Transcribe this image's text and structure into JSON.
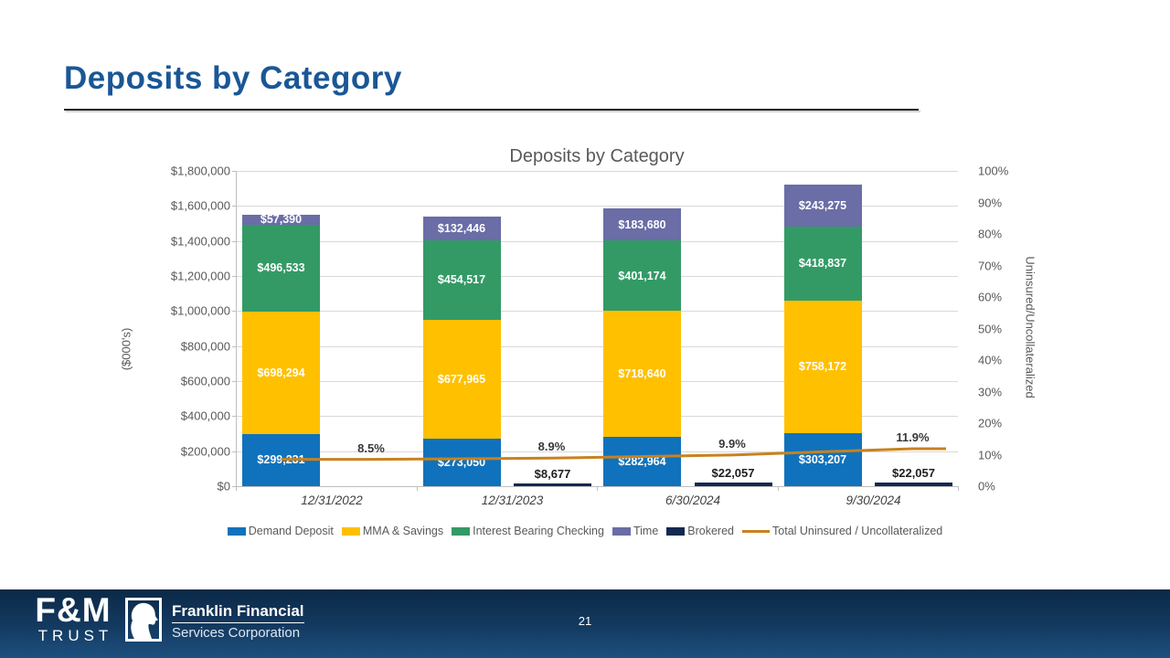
{
  "slide": {
    "title": "Deposits by Category",
    "page_number": "21"
  },
  "chart_data": {
    "type": "bar",
    "title": "Deposits by Category",
    "categories": [
      "12/31/2022",
      "12/31/2023",
      "6/30/2024",
      "9/30/2024"
    ],
    "left_axis": {
      "title": "($000's)",
      "min": 0,
      "max": 1800000,
      "step": 200000,
      "ticks": [
        "$1,800,000",
        "$1,600,000",
        "$1,400,000",
        "$1,200,000",
        "$1,000,000",
        "$800,000",
        "$600,000",
        "$400,000",
        "$200,000",
        "$0"
      ]
    },
    "right_axis": {
      "title": "Uninsured/Uncollateralized",
      "min": 0,
      "max": 100,
      "step": 10,
      "ticks": [
        "100%",
        "90%",
        "80%",
        "70%",
        "60%",
        "50%",
        "40%",
        "30%",
        "20%",
        "10%",
        "0%"
      ]
    },
    "stacked_series": [
      {
        "name": "Demand Deposit",
        "color": "#1072BC",
        "values": [
          299231,
          273050,
          282964,
          303207
        ],
        "labels": [
          "$299,231",
          "$273,050",
          "$282,964",
          "$303,207"
        ]
      },
      {
        "name": "MMA & Savings",
        "color": "#FFC000",
        "values": [
          698294,
          677965,
          718640,
          758172
        ],
        "labels": [
          "$698,294",
          "$677,965",
          "$718,640",
          "$758,172"
        ]
      },
      {
        "name": "Interest Bearing Checking",
        "color": "#339A66",
        "values": [
          496533,
          454517,
          401174,
          418837
        ],
        "labels": [
          "$496,533",
          "$454,517",
          "$401,174",
          "$418,837"
        ]
      },
      {
        "name": "Time",
        "color": "#6A6DA6",
        "values": [
          57390,
          132446,
          183680,
          243275
        ],
        "labels": [
          "$57,390",
          "$132,446",
          "$183,680",
          "$243,275"
        ]
      }
    ],
    "brokered_series": {
      "name": "Brokered",
      "color": "#13294F",
      "values": [
        0,
        8677,
        22057,
        22057
      ],
      "labels": [
        "",
        "$8,677",
        "$22,057",
        "$22,057"
      ]
    },
    "line_series": {
      "name": "Total Uninsured / Uncollateralized",
      "color": "#C8821E",
      "values": [
        8.5,
        8.9,
        9.9,
        11.9
      ],
      "labels": [
        "8.5%",
        "8.9%",
        "9.9%",
        "11.9%"
      ]
    },
    "legend": [
      {
        "label": "Demand Deposit",
        "color": "#1072BC",
        "type": "box"
      },
      {
        "label": "MMA & Savings",
        "color": "#FFC000",
        "type": "box"
      },
      {
        "label": "Interest Bearing Checking",
        "color": "#339A66",
        "type": "box"
      },
      {
        "label": "Time",
        "color": "#6A6DA6",
        "type": "box"
      },
      {
        "label": "Brokered",
        "color": "#13294F",
        "type": "box"
      },
      {
        "label": "Total Uninsured / Uncollateralized",
        "color": "#C8821E",
        "type": "line"
      }
    ]
  },
  "footer": {
    "fm_logo_line1": "F&M",
    "fm_logo_line2": "TRUST",
    "franklin_line1": "Franklin Financial",
    "franklin_line2": "Services Corporation"
  }
}
